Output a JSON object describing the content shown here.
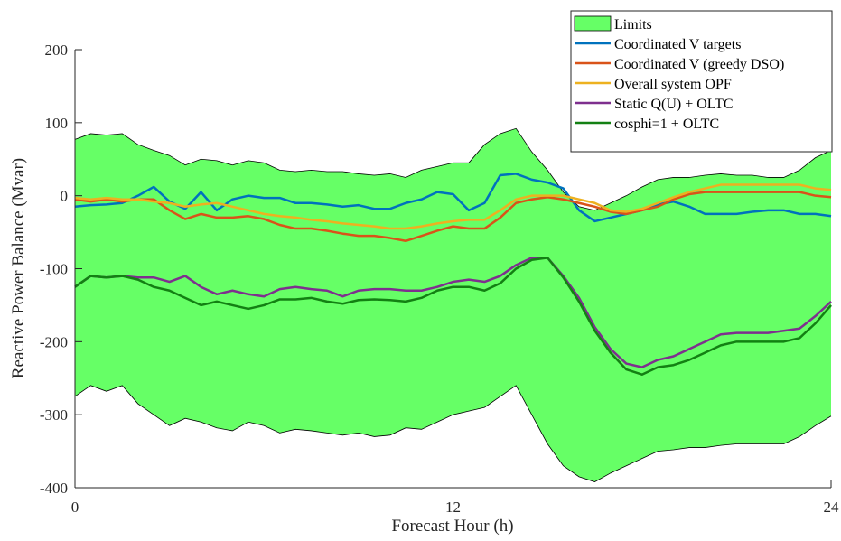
{
  "chart_data": {
    "type": "line",
    "xlabel": "Forecast Hour (h)",
    "ylabel": "Reactive Power Balance (Mvar)",
    "x": [
      0,
      0.5,
      1,
      1.5,
      2,
      2.5,
      3,
      3.5,
      4,
      4.5,
      5,
      5.5,
      6,
      6.5,
      7,
      7.5,
      8,
      8.5,
      9,
      9.5,
      10,
      10.5,
      11,
      11.5,
      12,
      12.5,
      13,
      13.5,
      14,
      14.5,
      15,
      15.5,
      16,
      16.5,
      17,
      17.5,
      18,
      18.5,
      19,
      19.5,
      20,
      20.5,
      21,
      21.5,
      22,
      22.5,
      23,
      23.5,
      24
    ],
    "xlim": [
      0,
      24
    ],
    "xticks": [
      0,
      12,
      24
    ],
    "ylim": [
      -400,
      200
    ],
    "yticks": [
      -400,
      -300,
      -200,
      -100,
      0,
      100,
      200
    ],
    "legend": "upper right",
    "series": [
      {
        "name": "Limits",
        "type": "band",
        "color": "#66ff66",
        "upper": [
          77,
          85,
          83,
          85,
          70,
          62,
          55,
          42,
          50,
          48,
          42,
          48,
          45,
          35,
          33,
          35,
          33,
          33,
          30,
          28,
          30,
          25,
          35,
          40,
          45,
          45,
          70,
          85,
          92,
          60,
          35,
          5,
          -15,
          -20,
          -10,
          0,
          12,
          22,
          25,
          25,
          28,
          30,
          28,
          28,
          25,
          25,
          35,
          52,
          62
        ],
        "lower": [
          -275,
          -260,
          -268,
          -260,
          -285,
          -300,
          -315,
          -305,
          -310,
          -318,
          -322,
          -310,
          -315,
          -325,
          -320,
          -322,
          -325,
          -328,
          -325,
          -330,
          -328,
          -318,
          -320,
          -310,
          -300,
          -295,
          -290,
          -275,
          -260,
          -300,
          -340,
          -370,
          -385,
          -392,
          -380,
          -370,
          -360,
          -350,
          -348,
          -345,
          -345,
          -342,
          -340,
          -340,
          -340,
          -340,
          -330,
          -315,
          -302
        ]
      },
      {
        "name": "Coordinated V targets",
        "color": "#0072bd",
        "values": [
          -15,
          -13,
          -12,
          -10,
          0,
          12,
          -8,
          -18,
          5,
          -20,
          -5,
          0,
          -3,
          -3,
          -10,
          -10,
          -12,
          -15,
          -13,
          -18,
          -18,
          -10,
          -5,
          5,
          2,
          -20,
          -10,
          28,
          30,
          22,
          18,
          10,
          -20,
          -35,
          -30,
          -25,
          -20,
          -12,
          -8,
          -15,
          -25,
          -25,
          -25,
          -22,
          -20,
          -20,
          -25,
          -25,
          -28
        ]
      },
      {
        "name": "Coordinated V (greedy DSO)",
        "color": "#d95319",
        "values": [
          -5,
          -8,
          -5,
          -8,
          -5,
          -5,
          -20,
          -32,
          -25,
          -30,
          -30,
          -28,
          -32,
          -40,
          -45,
          -45,
          -48,
          -52,
          -55,
          -55,
          -58,
          -62,
          -55,
          -48,
          -42,
          -45,
          -45,
          -30,
          -10,
          -5,
          -2,
          -5,
          -10,
          -15,
          -22,
          -25,
          -20,
          -15,
          -5,
          2,
          5,
          5,
          5,
          5,
          5,
          5,
          5,
          0,
          -2
        ]
      },
      {
        "name": "Overall system OPF",
        "color": "#edb120",
        "values": [
          -3,
          -5,
          -3,
          -5,
          -5,
          -8,
          -10,
          -15,
          -12,
          -10,
          -15,
          -20,
          -25,
          -28,
          -30,
          -33,
          -35,
          -38,
          -40,
          -42,
          -45,
          -45,
          -42,
          -38,
          -35,
          -33,
          -33,
          -20,
          -5,
          0,
          0,
          0,
          -5,
          -10,
          -20,
          -22,
          -18,
          -10,
          -2,
          5,
          10,
          15,
          15,
          15,
          15,
          15,
          15,
          10,
          8
        ]
      },
      {
        "name": "Static Q(U) + OLTC",
        "color": "#7e2f8e",
        "values": [
          -125,
          -110,
          -112,
          -110,
          -112,
          -112,
          -118,
          -110,
          -125,
          -135,
          -130,
          -135,
          -138,
          -128,
          -125,
          -128,
          -130,
          -138,
          -130,
          -128,
          -128,
          -130,
          -130,
          -125,
          -118,
          -115,
          -118,
          -110,
          -95,
          -85,
          -85,
          -110,
          -140,
          -180,
          -210,
          -230,
          -235,
          -225,
          -220,
          -210,
          -200,
          -190,
          -188,
          -188,
          -188,
          -185,
          -182,
          -165,
          -145
        ]
      },
      {
        "name": "cosphi=1 + OLTC",
        "color": "#138013",
        "values": [
          -125,
          -110,
          -112,
          -110,
          -115,
          -125,
          -130,
          -140,
          -150,
          -145,
          -150,
          -155,
          -150,
          -142,
          -142,
          -140,
          -145,
          -148,
          -143,
          -142,
          -143,
          -145,
          -140,
          -130,
          -125,
          -125,
          -130,
          -120,
          -100,
          -88,
          -85,
          -112,
          -145,
          -185,
          -215,
          -238,
          -245,
          -235,
          -232,
          -225,
          -215,
          -205,
          -200,
          -200,
          -200,
          -200,
          -195,
          -175,
          -150
        ]
      }
    ]
  }
}
